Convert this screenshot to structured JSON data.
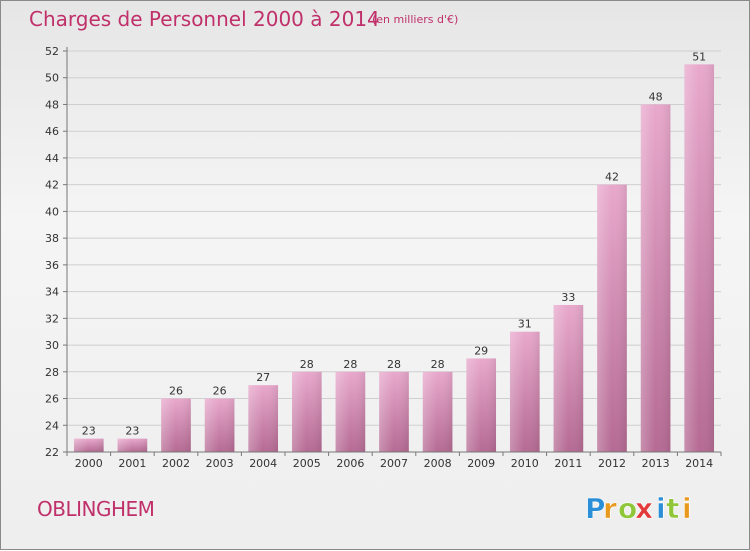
{
  "title": "Charges de Personnel 2000 à 2014",
  "subtitle": "(en milliers d'€)",
  "commune": "OBLINGHEM",
  "logo": {
    "text": "Proxiti",
    "letters": [
      "P",
      "r",
      "o",
      "x",
      "i",
      "t",
      "i"
    ],
    "colors": [
      "#2a8fd6",
      "#e89a1f",
      "#8fc63a",
      "#e23a3a",
      "#2a8fd6",
      "#8fc63a",
      "#e89a1f"
    ]
  },
  "chart_data": {
    "type": "bar",
    "title": "Charges de Personnel 2000 à 2014",
    "subtitle": "(en milliers d'€)",
    "categories": [
      "2000",
      "2001",
      "2002",
      "2003",
      "2004",
      "2005",
      "2006",
      "2007",
      "2008",
      "2009",
      "2010",
      "2011",
      "2012",
      "2013",
      "2014"
    ],
    "values": [
      23,
      23,
      26,
      26,
      27,
      28,
      28,
      28,
      28,
      29,
      31,
      33,
      42,
      48,
      51
    ],
    "ylim": [
      22,
      52
    ],
    "yticks": [
      22,
      24,
      26,
      28,
      30,
      32,
      34,
      36,
      38,
      40,
      42,
      44,
      46,
      48,
      50,
      52
    ],
    "grid": true,
    "bar_color": "#d783b0"
  }
}
